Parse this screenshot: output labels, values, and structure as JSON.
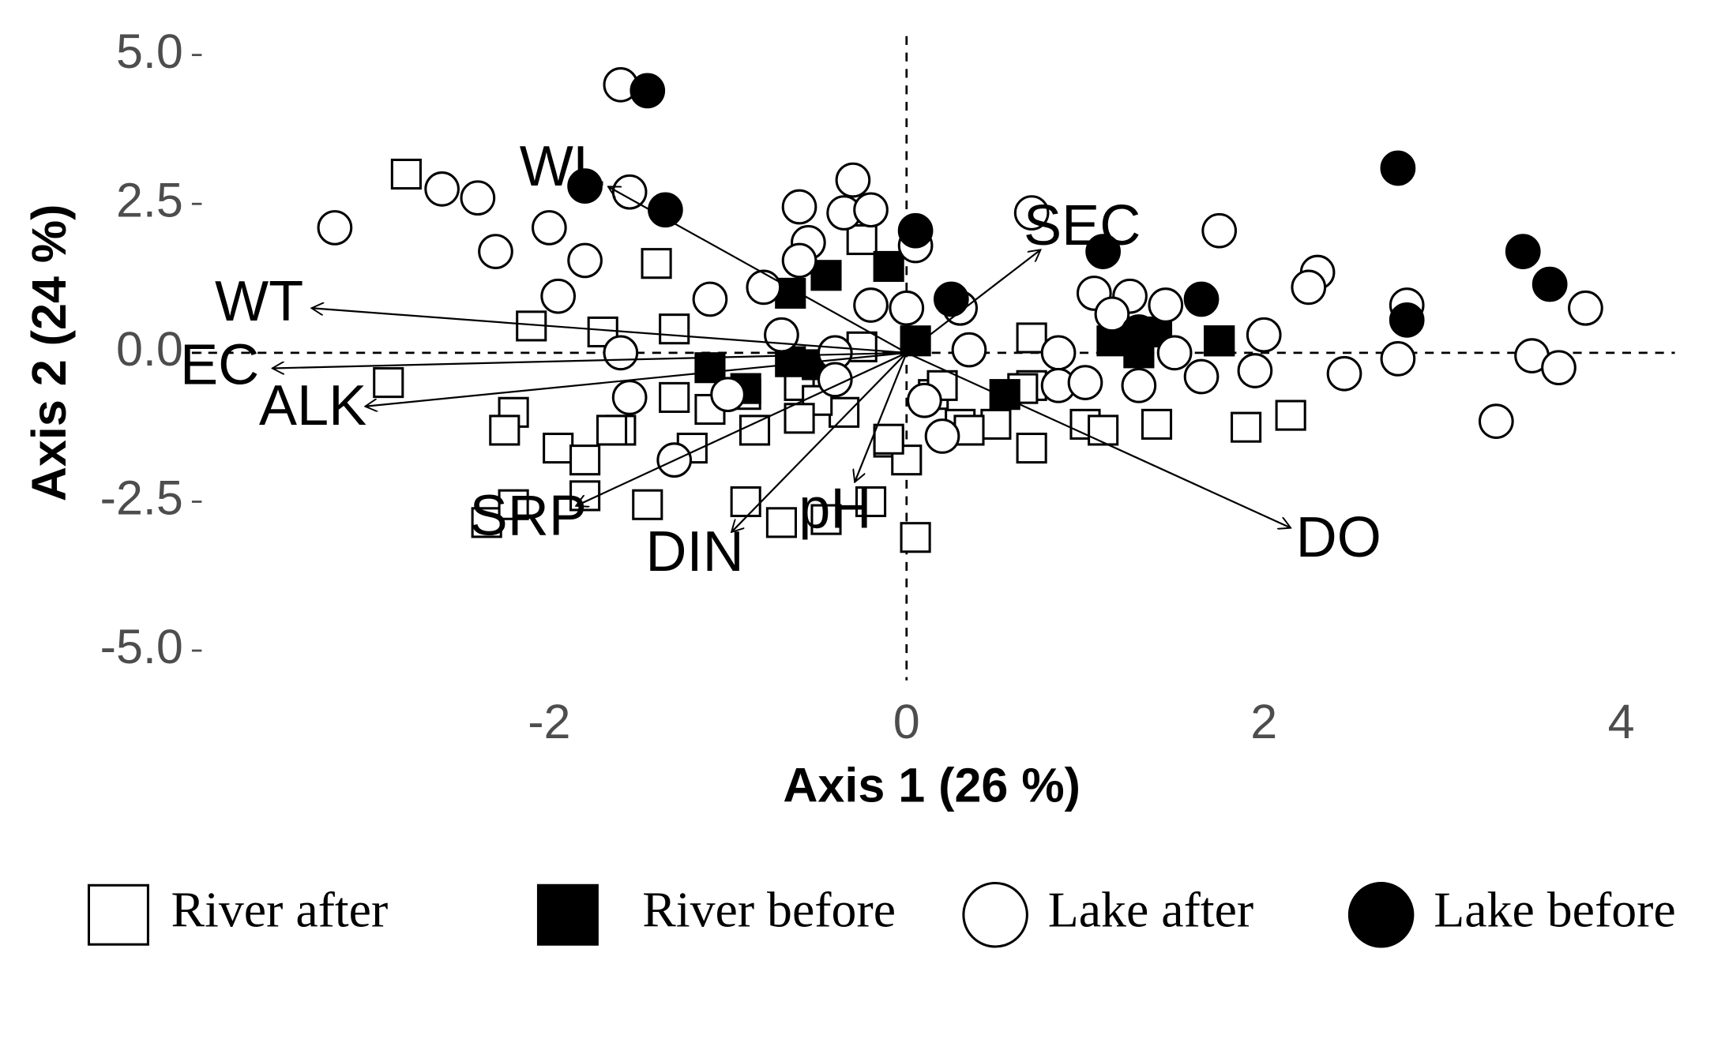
{
  "chart_data": {
    "type": "scatter",
    "x_label": "Axis 1 (26 %)",
    "y_label": "Axis 2 (24 %)",
    "xlim": [
      -4,
      4.3
    ],
    "ylim": [
      -5.5,
      5.5
    ],
    "xticks": [
      -2,
      0,
      2,
      4
    ],
    "yticks": [
      {
        "value": -5,
        "label": "-5.0"
      },
      -2.5,
      {
        "value": 0,
        "label": "0.0"
      },
      2.5,
      {
        "value": 5,
        "label": "5.0"
      }
    ],
    "grid": false,
    "legend": "bottom",
    "series": [
      {
        "name": "River after",
        "marker": "square",
        "filled": false,
        "color": "#000000",
        "x": [
          -2.8,
          -1.4,
          -2.1,
          -1.7,
          -1.3,
          -2.9,
          -2.2,
          -2.25,
          -1.95,
          -1.8,
          -1.6,
          -1.2,
          -1.3,
          -1.1,
          -0.9,
          -0.6,
          -0.35,
          -0.5,
          -2.35,
          -2.2,
          -1.8,
          -1.45,
          -0.9,
          -0.7,
          -0.45,
          -0.2,
          -0.1,
          0,
          0.05,
          0.15,
          0.3,
          0.5,
          0.7,
          0.7,
          0.7,
          1.0,
          1.1,
          1.2,
          1.4,
          1.75,
          1.9,
          2.15,
          -0.25,
          -0.25,
          0.65,
          -0.85,
          -0.6,
          0.2,
          -1.65,
          -0.1,
          0.35
        ],
        "values": [
          3.0,
          1.5,
          0.45,
          0.35,
          0.4,
          -0.5,
          -1.0,
          -1.3,
          -1.6,
          -1.8,
          -1.3,
          -1.6,
          -0.75,
          -0.95,
          -0.7,
          -0.55,
          -1.0,
          -0.8,
          -2.85,
          -2.55,
          -2.4,
          -2.55,
          -2.5,
          -2.85,
          -2.8,
          -2.5,
          -1.5,
          -1.8,
          -3.1,
          -0.7,
          -1.2,
          -1.2,
          -1.6,
          -0.55,
          0.25,
          -1.2,
          -1.3,
          0.35,
          -1.2,
          0.2,
          -1.25,
          -1.05,
          1.9,
          0.1,
          -0.6,
          -1.3,
          -1.1,
          -0.55,
          -1.3,
          -1.45,
          -1.3
        ]
      },
      {
        "name": "River before",
        "marker": "square",
        "filled": true,
        "color": "#000000",
        "x": [
          -0.65,
          -0.45,
          -0.1,
          -1.1,
          -0.9,
          -0.5,
          0.55,
          1.15,
          1.3,
          1.75,
          0.05,
          -0.65,
          1.4
        ],
        "values": [
          1.0,
          1.3,
          1.45,
          -0.25,
          -0.6,
          -0.2,
          -0.7,
          0.2,
          0.0,
          0.2,
          0.2,
          -0.15,
          0.35
        ]
      },
      {
        "name": "Lake after",
        "marker": "circle",
        "filled": false,
        "color": "#000000",
        "x": [
          -1.6,
          -3.2,
          -2.6,
          -2.4,
          -2.3,
          -2.0,
          -1.55,
          -1.8,
          -1.95,
          -0.3,
          -0.6,
          -0.55,
          -0.35,
          -0.2,
          -0.6,
          -0.8,
          -1.1,
          -0.4,
          -0.2,
          0.0,
          0.05,
          0.3,
          0.35,
          0.7,
          0.85,
          0.85,
          1.0,
          1.05,
          1.25,
          1.15,
          1.45,
          1.3,
          1.5,
          1.65,
          1.75,
          2.0,
          1.95,
          2.3,
          2.25,
          2.45,
          2.8,
          2.75,
          3.3,
          3.5,
          3.65,
          3.8,
          -1.6,
          -1.3,
          -1.55,
          -0.4,
          0.1,
          0.2,
          -0.7,
          -1.0
        ],
        "values": [
          4.5,
          2.1,
          2.75,
          2.6,
          1.7,
          2.1,
          2.7,
          1.55,
          0.95,
          2.9,
          2.45,
          1.85,
          2.35,
          2.4,
          1.55,
          1.1,
          0.9,
          0.0,
          0.8,
          0.75,
          1.8,
          0.75,
          0.05,
          2.35,
          0.0,
          -0.55,
          -0.5,
          1.0,
          0.95,
          0.65,
          0.8,
          -0.55,
          0.0,
          -0.4,
          2.05,
          0.3,
          -0.3,
          1.35,
          1.1,
          -0.35,
          0.8,
          -0.1,
          -1.15,
          -0.05,
          -0.25,
          0.75,
          0.0,
          -1.8,
          -0.75,
          -0.45,
          -0.8,
          -1.4,
          0.3,
          -0.7
        ]
      },
      {
        "name": "Lake before",
        "marker": "circle",
        "filled": true,
        "color": "#000000",
        "x": [
          -1.45,
          -1.8,
          -1.35,
          0.05,
          0.25,
          1.1,
          1.65,
          2.8,
          2.75,
          3.45,
          3.6,
          1.3
        ],
        "values": [
          4.4,
          2.8,
          2.4,
          2.05,
          0.9,
          1.7,
          0.9,
          0.55,
          3.1,
          1.7,
          1.15,
          0.35
        ]
      }
    ],
    "vectors": [
      {
        "name": "WL",
        "x": -1.67,
        "y": 2.79
      },
      {
        "name": "SEC",
        "x": 0.75,
        "y": 1.73
      },
      {
        "name": "WT",
        "x": -3.33,
        "y": 0.75
      },
      {
        "name": "EC",
        "x": -3.55,
        "y": -0.26
      },
      {
        "name": "ALK",
        "x": -3.03,
        "y": -0.9
      },
      {
        "name": "SRP",
        "x": -1.85,
        "y": -2.57
      },
      {
        "name": "DIN",
        "x": -0.98,
        "y": -3.01
      },
      {
        "name": "pH",
        "x": -0.29,
        "y": -2.17
      },
      {
        "name": "DO",
        "x": 2.15,
        "y": -2.94
      }
    ]
  }
}
